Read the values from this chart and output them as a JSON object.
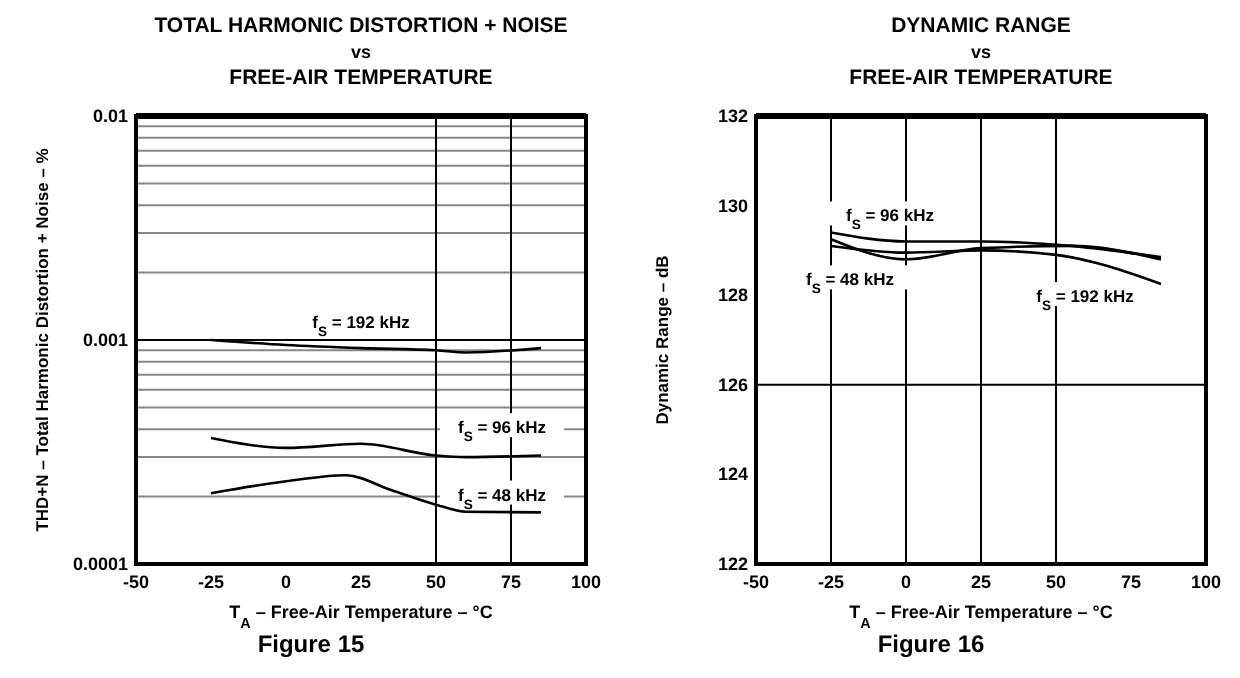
{
  "chart_data": [
    {
      "type": "line",
      "title": "TOTAL HARMONIC DISTORTION + NOISE\nvs\nFREE-AIR TEMPERATURE",
      "xlabel": "T$_{A}$ – Free-Air Temperature – °C",
      "ylabel": "THD+N – Total Harmonic Distortion + Noise – %",
      "log": "y",
      "grid": "y",
      "xlim": [
        -50,
        100
      ],
      "xticks": [
        -50,
        -25,
        0,
        25,
        50,
        75,
        100
      ],
      "ylim": [
        0.0001,
        0.01
      ],
      "yticks": [
        0.0001,
        {
          "value": 0.0002,
          "label": null
        },
        {
          "value": 0.0003,
          "label": null
        },
        {
          "value": 0.0004,
          "label": null
        },
        {
          "value": 0.0005,
          "label": null
        },
        {
          "value": 0.0006,
          "label": null
        },
        {
          "value": 0.0007,
          "label": null
        },
        {
          "value": 0.0008,
          "label": null
        },
        {
          "value": 0.0009,
          "label": null
        },
        0.001,
        {
          "value": 0.002,
          "label": null
        },
        {
          "value": 0.003,
          "label": null
        },
        {
          "value": 0.004,
          "label": null
        },
        {
          "value": 0.005,
          "label": null
        },
        {
          "value": 0.006,
          "label": null
        },
        {
          "value": 0.007,
          "label": null
        },
        {
          "value": 0.008,
          "label": null
        },
        {
          "value": 0.009,
          "label": null
        },
        0.01
      ],
      "ref_lines": [
        {
          "axis": "x",
          "value": 50
        },
        {
          "axis": "x",
          "value": 75
        }
      ],
      "series": [
        {
          "color": "#000000",
          "x": [
            -25,
            0,
            25,
            50,
            60,
            85
          ],
          "values": [
            0.001,
            0.00095,
            0.00092,
            0.0009,
            0.00088,
            0.00092
          ]
        },
        {
          "color": "#000000",
          "x": [
            -25,
            0,
            25,
            50,
            60,
            85
          ],
          "values": [
            0.000365,
            0.00033,
            0.000344,
            0.000305,
            0.0003,
            0.000305
          ]
        },
        {
          "color": "#000000",
          "x": [
            -25,
            0,
            20,
            35,
            50,
            60,
            85
          ],
          "values": [
            0.000207,
            0.000234,
            0.000249,
            0.000214,
            0.000184,
            0.000171,
            0.00017
          ]
        }
      ],
      "annotations": [
        {
          "text": "f$_{S}$ = 192 kHz",
          "x": 25,
          "y": 0.00092
        },
        {
          "text": "f$_{S}$ = 96 kHz",
          "x": 72,
          "y": 0.0004
        },
        {
          "text": "f$_{S}$ = 48 kHz",
          "x": 72,
          "y": 0.0002
        },
        "Figure 15"
      ]
    },
    {
      "type": "line",
      "title": "DYNAMIC RANGE\nvs\nFREE-AIR TEMPERATURE",
      "xlabel": "T$_{A}$ – Free-Air Temperature – °C",
      "ylabel": "Dynamic Range – dB",
      "xlim": [
        -50,
        100
      ],
      "xticks": [
        -50,
        -25,
        0,
        25,
        50,
        75,
        100
      ],
      "ylim": [
        122,
        132
      ],
      "yticks": [
        122,
        124,
        126,
        128,
        130,
        132
      ],
      "ref_lines": [
        {
          "axis": "x",
          "value": -25
        },
        {
          "axis": "x",
          "value": 0
        },
        {
          "axis": "x",
          "value": 25
        },
        {
          "axis": "x",
          "value": 50
        },
        {
          "axis": "y",
          "value": 126
        }
      ],
      "series": [
        {
          "color": "#000000",
          "x": [
            -25,
            0,
            25,
            55,
            85
          ],
          "values": [
            129.4,
            129.2,
            129.2,
            129.1,
            128.85
          ]
        },
        {
          "color": "#000000",
          "x": [
            -25,
            0,
            25,
            55,
            85
          ],
          "values": [
            129.25,
            128.8,
            129.05,
            129.1,
            128.8
          ]
        },
        {
          "color": "#000000",
          "x": [
            -25,
            0,
            25,
            50,
            85
          ],
          "values": [
            129.1,
            128.95,
            129.0,
            128.9,
            128.25
          ]
        }
      ],
      "annotations": [
        {
          "text": "f$_{S}$ = 96 kHz",
          "x": 0,
          "y": 129.2
        },
        {
          "text": "f$_{S}$ = 48 kHz",
          "x": 0,
          "y": 128.8
        },
        {
          "text": "f$_{S}$ = 192 kHz",
          "x": 85,
          "y": 128.25
        },
        "Figure 16"
      ]
    }
  ]
}
